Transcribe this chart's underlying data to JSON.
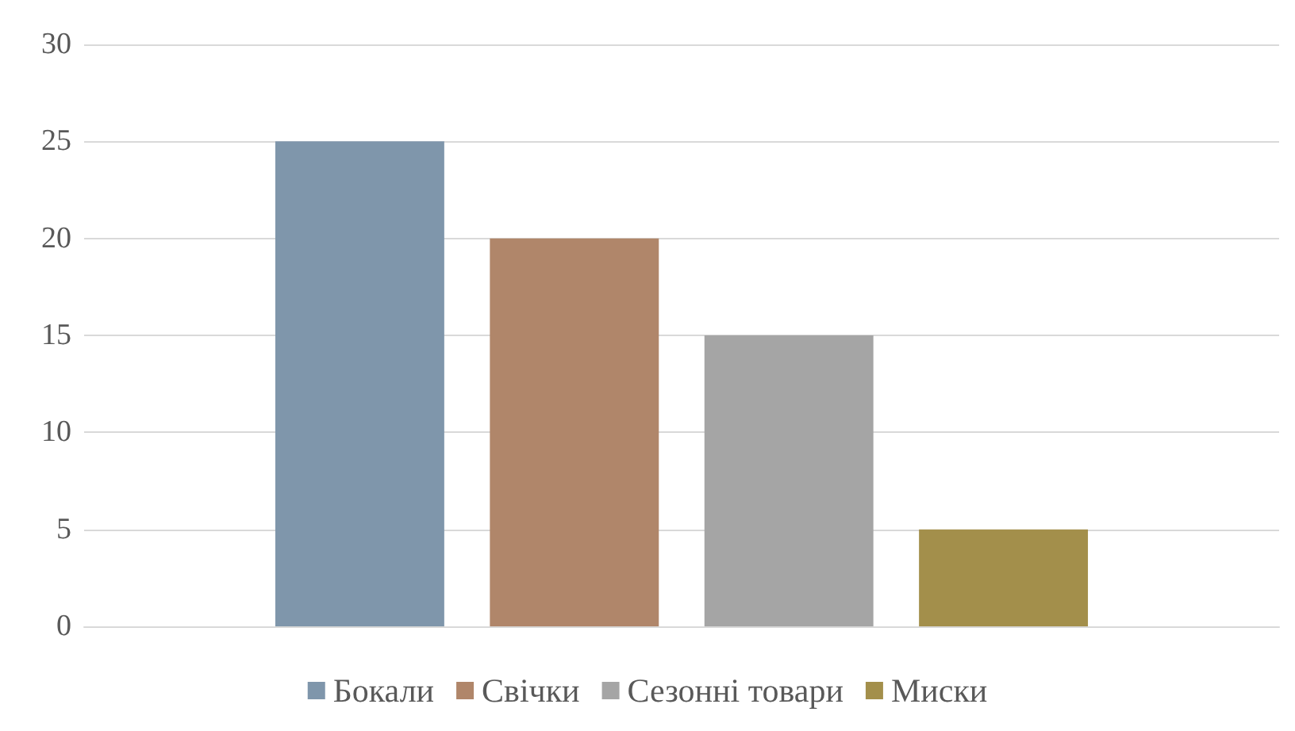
{
  "chart_data": {
    "type": "bar",
    "categories": [
      null
    ],
    "series": [
      {
        "name": "Бокали",
        "color": "#7f96ab",
        "values": [
          25
        ]
      },
      {
        "name": "Свічки",
        "color": "#b0866a",
        "values": [
          20
        ]
      },
      {
        "name": "Сезонні товари",
        "color": "#a5a5a5",
        "values": [
          15
        ]
      },
      {
        "name": "Миски",
        "color": "#a38f4b",
        "values": [
          5
        ]
      }
    ],
    "ylim": [
      0,
      30
    ],
    "yticks": [
      0,
      5,
      10,
      15,
      20,
      25,
      30
    ],
    "grid": "y",
    "legend": "bottom"
  }
}
